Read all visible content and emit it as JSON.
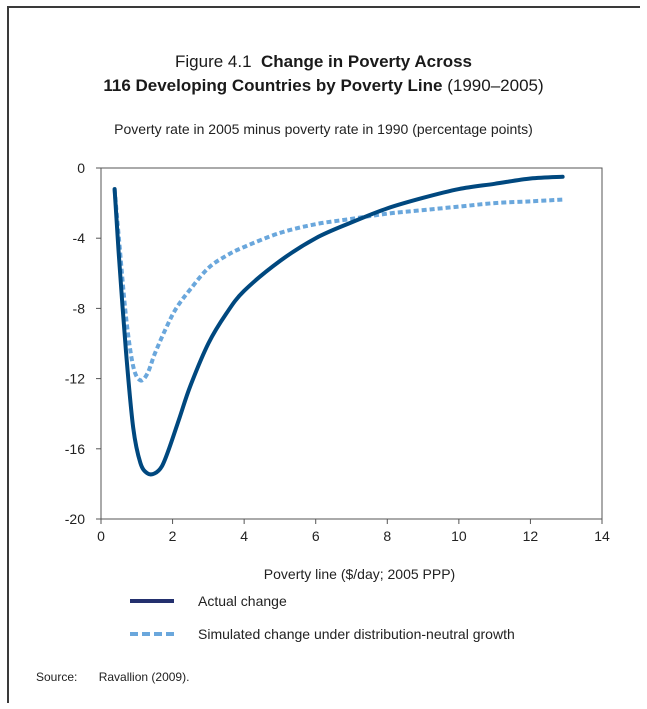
{
  "figure": {
    "number": "Figure 4.1",
    "title_bold_line1": "Change in Poverty Across",
    "title_bold_line2": "116 Developing Countries by Poverty Line",
    "title_suffix": "(1990–2005)"
  },
  "source": {
    "label": "Source:",
    "text": "Ravallion (2009)."
  },
  "colors": {
    "actual": "#00487f",
    "simulated": "#6aa7dc"
  },
  "chart_data": {
    "type": "line",
    "title": "Figure 4.1 Change in Poverty Across 116 Developing Countries by Poverty Line (1990–2005)",
    "ylabel": "Poverty rate in 2005 minus poverty rate in 1990 (percentage points)",
    "xlabel": "Poverty line ($/day; 2005 PPP)",
    "xlim": [
      0,
      14
    ],
    "ylim": [
      -20,
      0
    ],
    "xticks": [
      0,
      2,
      4,
      6,
      8,
      10,
      12,
      14
    ],
    "yticks": [
      0,
      -4,
      -8,
      -12,
      -16,
      -20
    ],
    "grid": false,
    "legend_position": "bottom",
    "series": [
      {
        "name": "Actual change",
        "style": "solid",
        "x": [
          0.38,
          0.5,
          0.7,
          0.9,
          1.1,
          1.3,
          1.5,
          1.7,
          1.9,
          2.2,
          2.5,
          3.0,
          3.5,
          4.0,
          5.0,
          6.0,
          7.0,
          8.0,
          9.0,
          10.0,
          11.0,
          12.0,
          12.9
        ],
        "y": [
          -1.2,
          -5.0,
          -10.5,
          -14.8,
          -16.8,
          -17.4,
          -17.4,
          -17.0,
          -16.0,
          -14.2,
          -12.4,
          -10.0,
          -8.3,
          -7.0,
          -5.3,
          -4.0,
          -3.1,
          -2.3,
          -1.7,
          -1.2,
          -0.9,
          -0.6,
          -0.5
        ]
      },
      {
        "name": "Simulated change under distribution-neutral growth",
        "style": "dashed",
        "x": [
          0.38,
          0.5,
          0.7,
          0.9,
          1.1,
          1.3,
          1.5,
          1.8,
          2.1,
          2.5,
          3.0,
          3.5,
          4.0,
          5.0,
          6.0,
          7.0,
          8.0,
          9.0,
          10.0,
          11.0,
          12.0,
          12.9
        ],
        "y": [
          -1.2,
          -4.0,
          -8.5,
          -11.3,
          -12.1,
          -11.7,
          -10.6,
          -9.2,
          -8.0,
          -6.9,
          -5.7,
          -5.0,
          -4.5,
          -3.7,
          -3.2,
          -2.9,
          -2.6,
          -2.4,
          -2.2,
          -2.0,
          -1.9,
          -1.8
        ]
      }
    ]
  }
}
